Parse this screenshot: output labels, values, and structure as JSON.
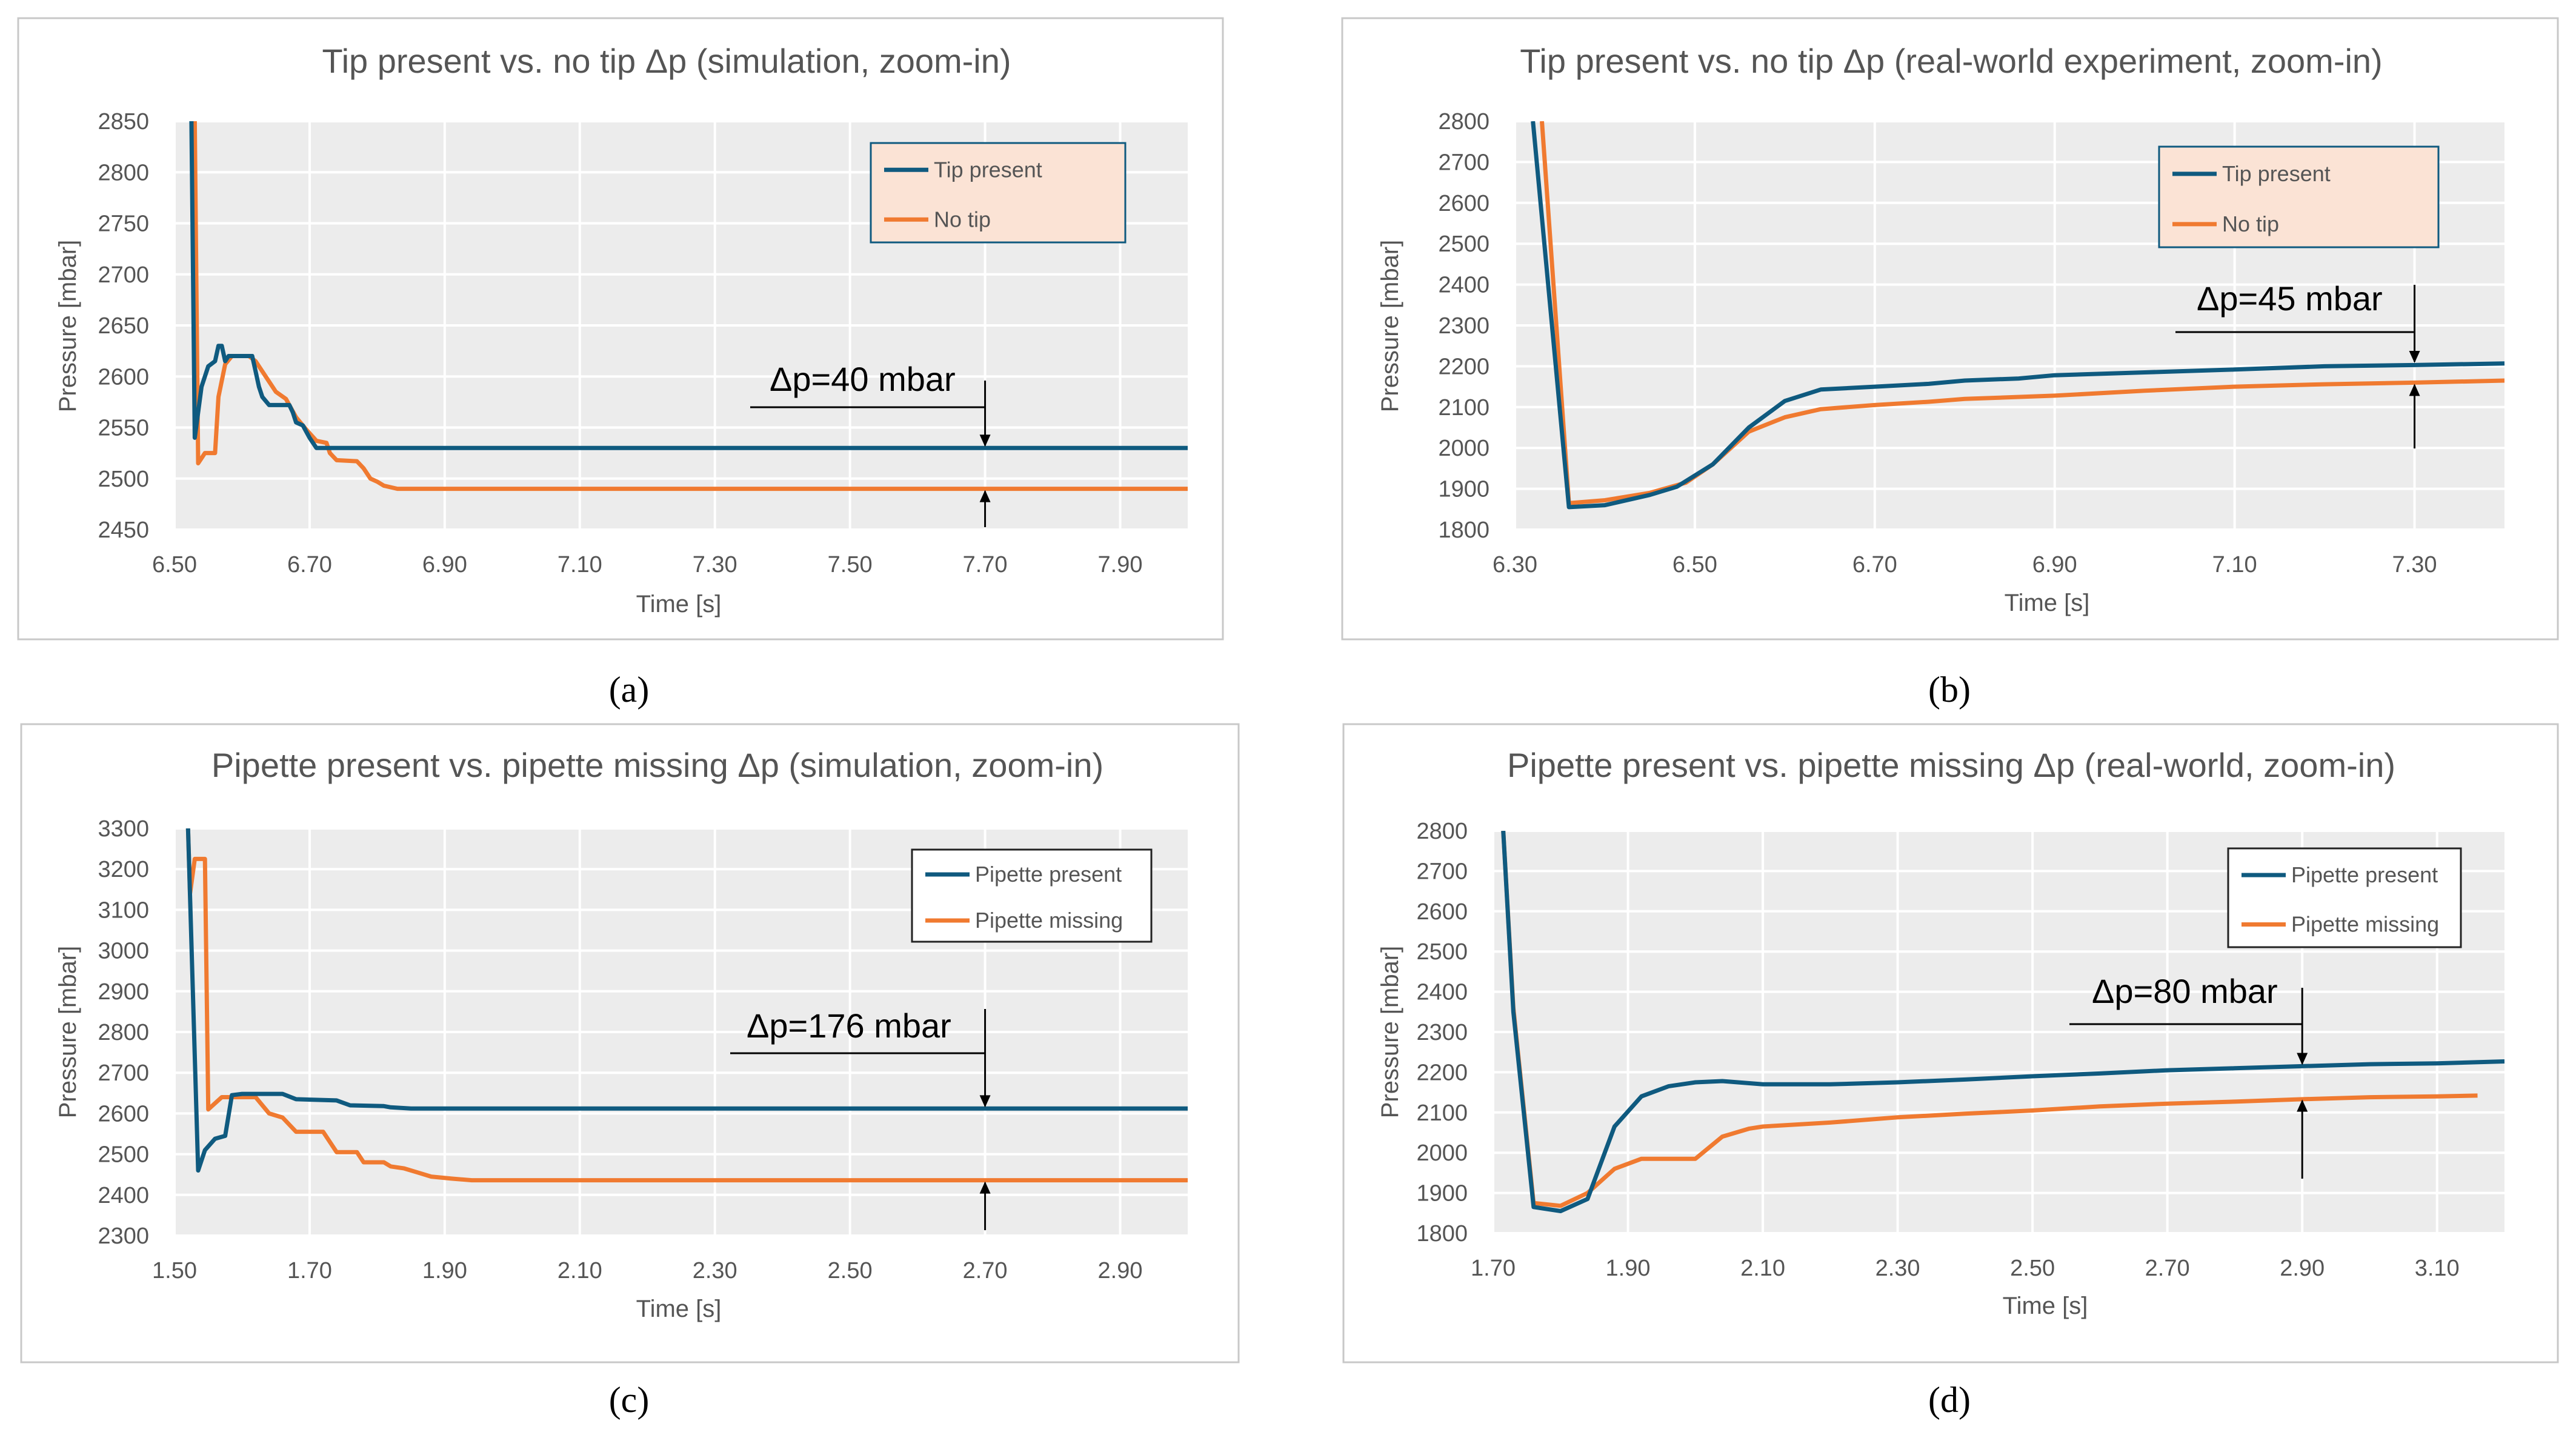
{
  "colors": {
    "tip_series": "#0f5a7f",
    "notip_series": "#f07a30",
    "plot_bg": "#ececec",
    "grid": "#ffffff",
    "panel_border": "#c8c8c8",
    "text": "#555555",
    "legend_bg_a": "#fbe3d5",
    "legend_border_a": "#0f5a7f",
    "legend_bg_c": "#ffffff",
    "legend_border_c": "#222222"
  },
  "chart_data": [
    {
      "id": "a",
      "type": "line",
      "title": "Tip present vs. no tip Δp (simulation, zoom-in)",
      "xlabel": "Time [s]",
      "ylabel": "Pressure [mbar]",
      "xlim": [
        6.5,
        8.0
      ],
      "ylim": [
        2450,
        2850
      ],
      "xticks": [
        6.5,
        6.7,
        6.9,
        7.1,
        7.3,
        7.5,
        7.7,
        7.9
      ],
      "xtick_labels": [
        "6.50",
        "6.70",
        "6.90",
        "7.10",
        "7.30",
        "7.50",
        "7.70",
        "7.90"
      ],
      "yticks": [
        2450,
        2500,
        2550,
        2600,
        2650,
        2700,
        2750,
        2800,
        2850
      ],
      "ytick_labels": [
        "2450",
        "2500",
        "2550",
        "2600",
        "2650",
        "2700",
        "2750",
        "2800",
        "2850"
      ],
      "grid": true,
      "legend": "top-right",
      "caption": "(a)",
      "annotation": {
        "text": "Δp=40 mbar",
        "x": 7.7,
        "y_top": 2530,
        "y_bottom": 2490
      },
      "series": [
        {
          "name": "Tip present",
          "color_key": "tip_series",
          "points": [
            [
              6.525,
              2850
            ],
            [
              6.53,
              2540
            ],
            [
              6.54,
              2590
            ],
            [
              6.55,
              2610
            ],
            [
              6.56,
              2615
            ],
            [
              6.565,
              2630
            ],
            [
              6.57,
              2630
            ],
            [
              6.575,
              2615
            ],
            [
              6.58,
              2620
            ],
            [
              6.6,
              2620
            ],
            [
              6.615,
              2620
            ],
            [
              6.62,
              2605
            ],
            [
              6.625,
              2590
            ],
            [
              6.63,
              2580
            ],
            [
              6.64,
              2572
            ],
            [
              6.67,
              2572
            ],
            [
              6.675,
              2565
            ],
            [
              6.68,
              2555
            ],
            [
              6.69,
              2552
            ],
            [
              6.7,
              2540
            ],
            [
              6.71,
              2530
            ],
            [
              8.0,
              2530
            ]
          ]
        },
        {
          "name": "No tip",
          "color_key": "notip_series",
          "points": [
            [
              6.53,
              2850
            ],
            [
              6.535,
              2515
            ],
            [
              6.545,
              2525
            ],
            [
              6.56,
              2525
            ],
            [
              6.565,
              2580
            ],
            [
              6.575,
              2612
            ],
            [
              6.585,
              2620
            ],
            [
              6.61,
              2620
            ],
            [
              6.62,
              2615
            ],
            [
              6.635,
              2600
            ],
            [
              6.65,
              2585
            ],
            [
              6.665,
              2578
            ],
            [
              6.68,
              2560
            ],
            [
              6.695,
              2548
            ],
            [
              6.71,
              2537
            ],
            [
              6.725,
              2535
            ],
            [
              6.73,
              2525
            ],
            [
              6.74,
              2518
            ],
            [
              6.77,
              2517
            ],
            [
              6.78,
              2510
            ],
            [
              6.79,
              2500
            ],
            [
              6.8,
              2497
            ],
            [
              6.81,
              2493
            ],
            [
              6.83,
              2490
            ],
            [
              8.0,
              2490
            ]
          ]
        }
      ]
    },
    {
      "id": "b",
      "type": "line",
      "title": "Tip present vs. no tip Δp (real-world experiment, zoom-in)",
      "xlabel": "Time [s]",
      "ylabel": "Pressure [mbar]",
      "xlim": [
        6.3,
        7.4
      ],
      "ylim": [
        1800,
        2800
      ],
      "xticks": [
        6.3,
        6.5,
        6.7,
        6.9,
        7.1,
        7.3
      ],
      "xtick_labels": [
        "6.30",
        "6.50",
        "6.70",
        "6.90",
        "7.10",
        "7.30"
      ],
      "yticks": [
        1800,
        1900,
        2000,
        2100,
        2200,
        2300,
        2400,
        2500,
        2600,
        2700,
        2800
      ],
      "ytick_labels": [
        "1800",
        "1900",
        "2000",
        "2100",
        "2200",
        "2300",
        "2400",
        "2500",
        "2600",
        "2700",
        "2800"
      ],
      "grid": true,
      "legend": "top-right",
      "caption": "(b)",
      "annotation": {
        "text": "Δp=45 mbar",
        "x": 7.3,
        "y_top": 2205,
        "y_bottom": 2160
      },
      "series": [
        {
          "name": "Tip present",
          "color_key": "tip_series",
          "points": [
            [
              6.32,
              2800
            ],
            [
              6.36,
              1855
            ],
            [
              6.4,
              1860
            ],
            [
              6.45,
              1885
            ],
            [
              6.48,
              1905
            ],
            [
              6.52,
              1960
            ],
            [
              6.56,
              2050
            ],
            [
              6.6,
              2115
            ],
            [
              6.64,
              2143
            ],
            [
              6.7,
              2150
            ],
            [
              6.76,
              2157
            ],
            [
              6.8,
              2165
            ],
            [
              6.86,
              2170
            ],
            [
              6.9,
              2178
            ],
            [
              7.0,
              2185
            ],
            [
              7.1,
              2192
            ],
            [
              7.2,
              2200
            ],
            [
              7.3,
              2203
            ],
            [
              7.4,
              2207
            ]
          ]
        },
        {
          "name": "No tip",
          "color_key": "notip_series",
          "points": [
            [
              6.33,
              2800
            ],
            [
              6.36,
              1865
            ],
            [
              6.4,
              1872
            ],
            [
              6.45,
              1890
            ],
            [
              6.49,
              1915
            ],
            [
              6.52,
              1960
            ],
            [
              6.56,
              2040
            ],
            [
              6.6,
              2075
            ],
            [
              6.64,
              2095
            ],
            [
              6.7,
              2105
            ],
            [
              6.76,
              2113
            ],
            [
              6.8,
              2120
            ],
            [
              6.9,
              2128
            ],
            [
              7.0,
              2140
            ],
            [
              7.1,
              2150
            ],
            [
              7.2,
              2156
            ],
            [
              7.3,
              2160
            ],
            [
              7.4,
              2165
            ]
          ]
        }
      ]
    },
    {
      "id": "c",
      "type": "line",
      "title": "Pipette present vs. pipette missing Δp (simulation, zoom-in)",
      "xlabel": "Time [s]",
      "ylabel": "Pressure [mbar]",
      "xlim": [
        1.5,
        3.0
      ],
      "ylim": [
        2300,
        3300
      ],
      "xticks": [
        1.5,
        1.7,
        1.9,
        2.1,
        2.3,
        2.5,
        2.7,
        2.9
      ],
      "xtick_labels": [
        "1.50",
        "1.70",
        "1.90",
        "2.10",
        "2.30",
        "2.50",
        "2.70",
        "2.90"
      ],
      "yticks": [
        2300,
        2400,
        2500,
        2600,
        2700,
        2800,
        2900,
        3000,
        3100,
        3200,
        3300
      ],
      "ytick_labels": [
        "2300",
        "2400",
        "2500",
        "2600",
        "2700",
        "2800",
        "2900",
        "3000",
        "3100",
        "3200",
        "3300"
      ],
      "grid": true,
      "legend": "top-right",
      "caption": "(c)",
      "annotation": {
        "text": "Δp=176 mbar",
        "x": 2.7,
        "y_top": 2612,
        "y_bottom": 2436
      },
      "series": [
        {
          "name": "Pipette present",
          "color_key": "tip_series",
          "points": [
            [
              1.52,
              3300
            ],
            [
              1.535,
              2460
            ],
            [
              1.545,
              2510
            ],
            [
              1.56,
              2538
            ],
            [
              1.575,
              2545
            ],
            [
              1.585,
              2645
            ],
            [
              1.6,
              2648
            ],
            [
              1.66,
              2648
            ],
            [
              1.68,
              2635
            ],
            [
              1.74,
              2632
            ],
            [
              1.76,
              2620
            ],
            [
              1.81,
              2618
            ],
            [
              1.82,
              2615
            ],
            [
              1.85,
              2612
            ],
            [
              3.0,
              2612
            ]
          ]
        },
        {
          "name": "Pipette missing",
          "color_key": "notip_series",
          "points": [
            [
              1.52,
              3300
            ],
            [
              1.523,
              3140
            ],
            [
              1.53,
              3225
            ],
            [
              1.545,
              3225
            ],
            [
              1.55,
              2610
            ],
            [
              1.57,
              2640
            ],
            [
              1.62,
              2640
            ],
            [
              1.64,
              2600
            ],
            [
              1.66,
              2590
            ],
            [
              1.68,
              2555
            ],
            [
              1.72,
              2555
            ],
            [
              1.73,
              2530
            ],
            [
              1.74,
              2505
            ],
            [
              1.77,
              2505
            ],
            [
              1.78,
              2480
            ],
            [
              1.81,
              2480
            ],
            [
              1.82,
              2470
            ],
            [
              1.84,
              2465
            ],
            [
              1.86,
              2455
            ],
            [
              1.88,
              2445
            ],
            [
              1.91,
              2440
            ],
            [
              1.94,
              2436
            ],
            [
              3.0,
              2436
            ]
          ]
        }
      ]
    },
    {
      "id": "d",
      "type": "line",
      "title": "Pipette present vs. pipette missing Δp (real-world, zoom-in)",
      "xlabel": "Time [s]",
      "ylabel": "Pressure [mbar]",
      "xlim": [
        1.7,
        3.2
      ],
      "ylim": [
        1800,
        2800
      ],
      "xticks": [
        1.7,
        1.9,
        2.1,
        2.3,
        2.5,
        2.7,
        2.9,
        3.1
      ],
      "xtick_labels": [
        "1.70",
        "1.90",
        "2.10",
        "2.30",
        "2.50",
        "2.70",
        "2.90",
        "3.10"
      ],
      "yticks": [
        1800,
        1900,
        2000,
        2100,
        2200,
        2300,
        2400,
        2500,
        2600,
        2700,
        2800
      ],
      "ytick_labels": [
        "1800",
        "1900",
        "2000",
        "2100",
        "2200",
        "2300",
        "2400",
        "2500",
        "2600",
        "2700",
        "2800"
      ],
      "grid": true,
      "legend": "top-right",
      "caption": "(d)",
      "annotation": {
        "text": "Δp=80 mbar",
        "x": 2.9,
        "y_top": 2215,
        "y_bottom": 2135
      },
      "series": [
        {
          "name": "Pipette present",
          "color_key": "tip_series",
          "points": [
            [
              1.715,
              2800
            ],
            [
              1.73,
              2350
            ],
            [
              1.76,
              1865
            ],
            [
              1.8,
              1855
            ],
            [
              1.84,
              1885
            ],
            [
              1.88,
              2065
            ],
            [
              1.92,
              2140
            ],
            [
              1.96,
              2165
            ],
            [
              2.0,
              2175
            ],
            [
              2.04,
              2178
            ],
            [
              2.1,
              2170
            ],
            [
              2.2,
              2170
            ],
            [
              2.3,
              2175
            ],
            [
              2.4,
              2182
            ],
            [
              2.5,
              2190
            ],
            [
              2.6,
              2197
            ],
            [
              2.7,
              2205
            ],
            [
              2.8,
              2210
            ],
            [
              2.9,
              2215
            ],
            [
              3.0,
              2220
            ],
            [
              3.1,
              2222
            ],
            [
              3.2,
              2227
            ]
          ]
        },
        {
          "name": "Pipette missing",
          "color_key": "notip_series",
          "points": [
            [
              1.715,
              2800
            ],
            [
              1.73,
              2360
            ],
            [
              1.76,
              1875
            ],
            [
              1.8,
              1868
            ],
            [
              1.84,
              1900
            ],
            [
              1.88,
              1960
            ],
            [
              1.92,
              1985
            ],
            [
              2.0,
              1985
            ],
            [
              2.04,
              2040
            ],
            [
              2.08,
              2060
            ],
            [
              2.1,
              2065
            ],
            [
              2.2,
              2075
            ],
            [
              2.3,
              2088
            ],
            [
              2.4,
              2097
            ],
            [
              2.5,
              2105
            ],
            [
              2.6,
              2115
            ],
            [
              2.7,
              2122
            ],
            [
              2.8,
              2127
            ],
            [
              2.9,
              2133
            ],
            [
              3.0,
              2138
            ],
            [
              3.1,
              2140
            ],
            [
              3.16,
              2142
            ]
          ]
        }
      ]
    }
  ]
}
